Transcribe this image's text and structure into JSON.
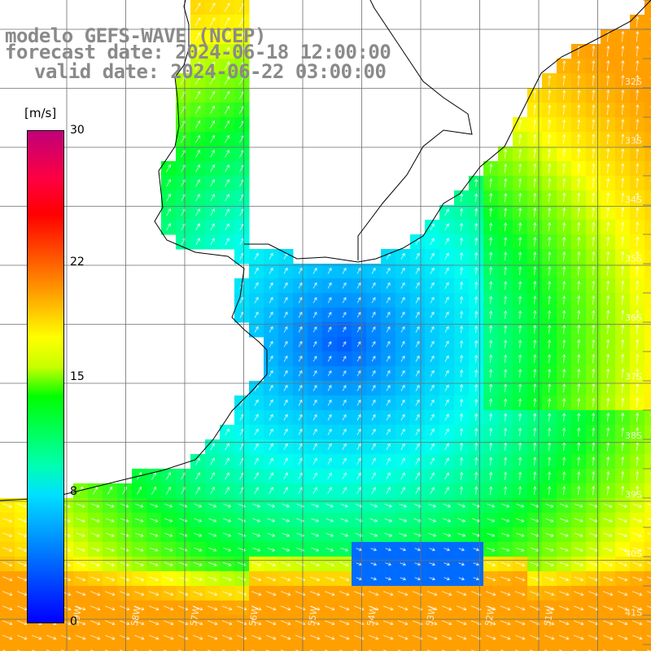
{
  "title": {
    "line1": "modelo GEFS-WAVE (NCEP)",
    "line2": "forecast date: 2024-06-18 12:00:00",
    "line3": "valid date: 2024-06-22 03:00:00"
  },
  "colorbar": {
    "unit": "[m/s]",
    "ticks": [
      {
        "label": "30",
        "value": 30
      },
      {
        "label": "22",
        "value": 22
      },
      {
        "label": "15",
        "value": 15
      },
      {
        "label": "8",
        "value": 8
      },
      {
        "label": "0",
        "value": 0
      }
    ],
    "min": 0,
    "max": 30
  },
  "axes": {
    "lat_labels": [
      "32S",
      "33S",
      "34S",
      "35S",
      "36S",
      "37S",
      "38S",
      "39S",
      "40S",
      "41S"
    ],
    "lon_labels": [
      "59W",
      "58W",
      "57W",
      "56W",
      "55W",
      "54W",
      "53W",
      "52W",
      "51W"
    ]
  },
  "colors": {
    "water_blue": "#0a5cf0",
    "water_cyan": "#00eaff",
    "water_green": "#1aff4a",
    "water_yellow": "#ffee00",
    "land": "#ffffff",
    "coast": "#000000",
    "grid": "#6e6e6e",
    "title": "#8a8a8a"
  }
}
